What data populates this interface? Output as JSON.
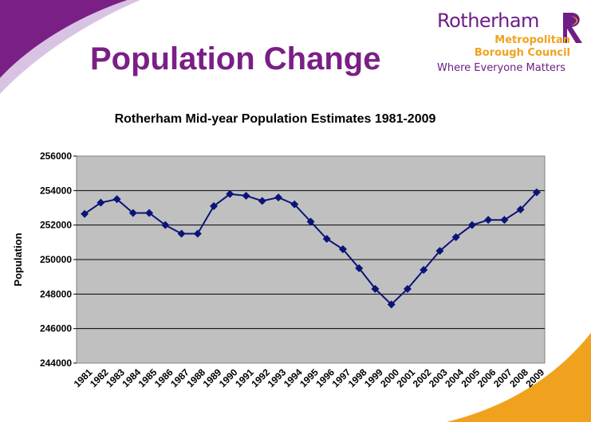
{
  "slide": {
    "title": "Population Change"
  },
  "logo": {
    "name": "Rotherham",
    "line1": "Metropolitan",
    "line2": "Borough Council",
    "tagline": "Where Everyone Matters",
    "mark_icon": "rotherham-r-logo-icon"
  },
  "colors": {
    "title": "#7a1f86",
    "brand_purple": "#6e1e86",
    "brand_orange": "#f0a21e",
    "plot_background": "#c0c0c0",
    "series_line": "#0a1478"
  },
  "chart_data": {
    "type": "line",
    "title": "Rotherham Mid-year Population Estimates 1981-2009",
    "xlabel": "",
    "ylabel": "Population",
    "ylim": [
      244000,
      256000
    ],
    "y_ticks": [
      244000,
      246000,
      248000,
      250000,
      252000,
      254000,
      256000
    ],
    "grid": true,
    "legend": "none",
    "categories": [
      "1981",
      "1982",
      "1983",
      "1984",
      "1985",
      "1986",
      "1987",
      "1988",
      "1989",
      "1990",
      "1991",
      "1992",
      "1993",
      "1994",
      "1995",
      "1996",
      "1997",
      "1998",
      "1999",
      "2000",
      "2001",
      "2002",
      "2003",
      "2004",
      "2005",
      "2006",
      "2007",
      "2008",
      "2009"
    ],
    "series": [
      {
        "marker": "diamond",
        "values": [
          252650,
          253300,
          253500,
          252700,
          252700,
          252000,
          251500,
          251500,
          253100,
          253800,
          253700,
          253400,
          253600,
          253200,
          252200,
          251200,
          250600,
          249500,
          248300,
          247400,
          248300,
          249400,
          250500,
          251300,
          252000,
          252300,
          252300,
          252900,
          253900
        ]
      }
    ]
  }
}
